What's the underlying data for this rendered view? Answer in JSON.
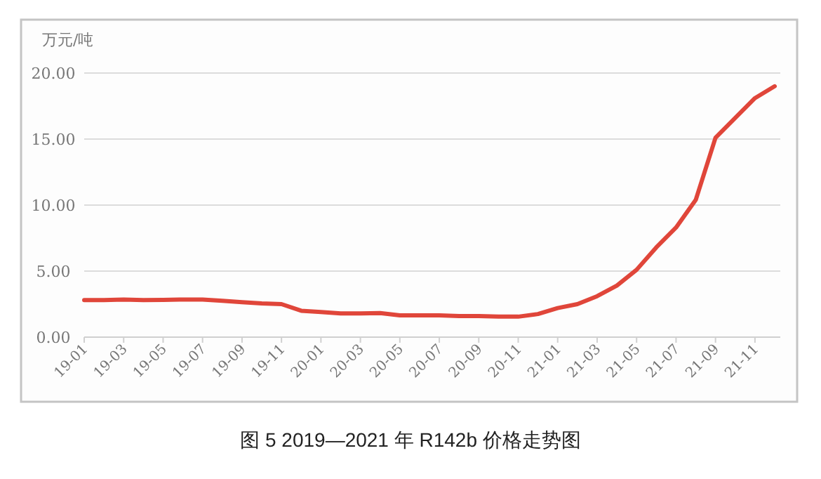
{
  "chart_data": {
    "type": "line",
    "title": "图 5  2019—2021 年 R142b 价格走势图",
    "ylabel": "万元/吨",
    "categories": [
      "19-01",
      null,
      "19-03",
      null,
      "19-05",
      null,
      "19-07",
      null,
      "19-09",
      null,
      "19-11",
      null,
      "20-01",
      null,
      "20-03",
      null,
      "20-05",
      null,
      "20-07",
      null,
      "20-09",
      null,
      "20-11",
      null,
      "21-01",
      null,
      "21-03",
      null,
      "21-05",
      null,
      "21-07",
      null,
      "21-09",
      null,
      "21-11",
      null
    ],
    "series": [
      {
        "color": "#e0463a",
        "values": [
          2.8,
          2.8,
          2.85,
          2.8,
          2.82,
          2.85,
          2.85,
          2.75,
          2.65,
          2.55,
          2.5,
          2.0,
          1.9,
          1.8,
          1.8,
          1.82,
          1.65,
          1.65,
          1.65,
          1.6,
          1.6,
          1.55,
          1.55,
          1.75,
          2.2,
          2.5,
          3.1,
          3.9,
          5.1,
          6.8,
          8.3,
          10.4,
          15.1,
          16.6,
          18.1,
          19.0
        ]
      }
    ],
    "ylim": [
      0,
      20
    ],
    "yticks": [
      {
        "value": 0,
        "label": "0.00"
      },
      {
        "value": 5,
        "label": "5.00"
      },
      {
        "value": 10,
        "label": "10.00"
      },
      {
        "value": 15,
        "label": "15.00"
      },
      {
        "value": 20,
        "label": "20.00"
      }
    ],
    "grid": "y",
    "marker": "none",
    "line_style": "solid"
  }
}
